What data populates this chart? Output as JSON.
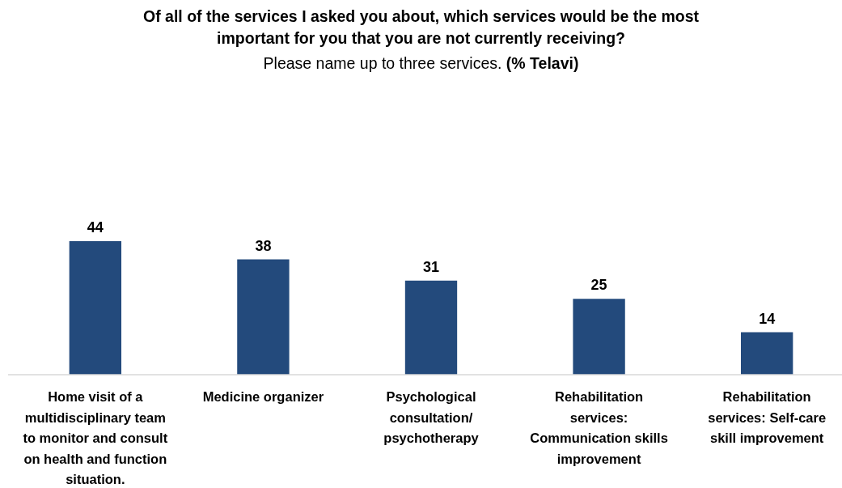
{
  "chart_data": {
    "type": "bar",
    "title": "Of all of the services I asked you about, which services would be the most important for you that you are not currently receiving?",
    "subtitle": "Please name up to three services. (% Telavi)",
    "categories": [
      "Home visit of a multidisciplinary team to monitor and consult on health and function situation.",
      "Medicine organizer",
      "Psychological consultation/ psychotherapy",
      "Rehabilitation services: Communication skills improvement",
      "Rehabilitation services: Self-care skill improvement"
    ],
    "values": [
      44,
      38,
      31,
      25,
      14
    ],
    "color": "#234a7c",
    "data_labels": true
  }
}
